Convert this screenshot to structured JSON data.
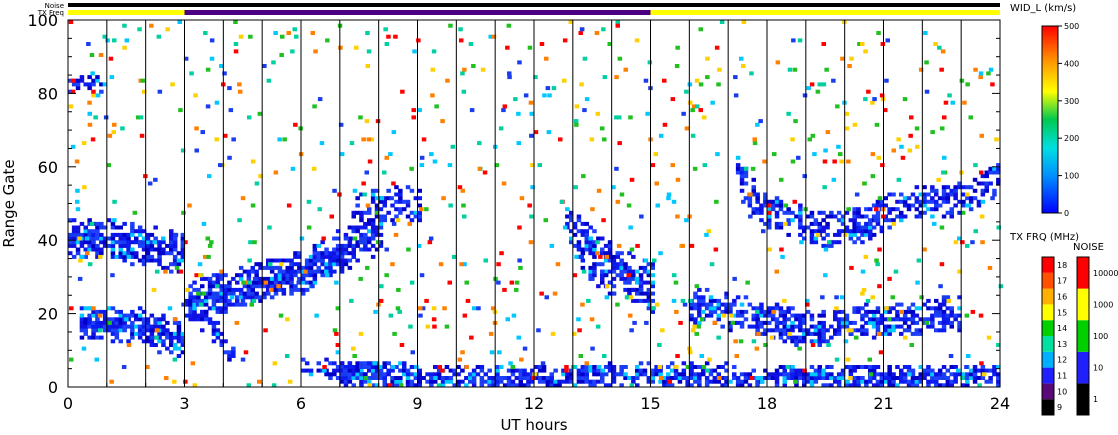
{
  "chart_data": {
    "type": "heatmap",
    "xlabel": "UT hours",
    "ylabel": "Range Gate",
    "xlim": [
      0,
      24
    ],
    "ylim": [
      0,
      100
    ],
    "x_ticks": [
      "0",
      "3",
      "6",
      "9",
      "12",
      "15",
      "18",
      "21",
      "24"
    ],
    "y_ticks": [
      "0",
      "20",
      "40",
      "60",
      "80",
      "100"
    ],
    "status_bars": {
      "noise_label": "Noise",
      "txfreq_label": "TX Freq",
      "txfreq_segments": [
        {
          "start": 0,
          "end": 3,
          "color": "#ffff00"
        },
        {
          "start": 3,
          "end": 15,
          "color": "#4b0082"
        },
        {
          "start": 15,
          "end": 24,
          "color": "#ffff00"
        }
      ]
    },
    "width_colorbar": {
      "title": "WID_L (km/s)",
      "ticks": [
        "0",
        "100",
        "200",
        "300",
        "400",
        "500"
      ],
      "min": 0,
      "max": 500
    },
    "txfreq_colorbar": {
      "title": "TX FRQ (MHz)",
      "ticks": [
        "9",
        "10",
        "11",
        "12",
        "13",
        "14",
        "15",
        "16",
        "17",
        "18"
      ],
      "colors": [
        "#000000",
        "#5a0a78",
        "#2020ff",
        "#00b0ff",
        "#00e0a0",
        "#00d000",
        "#ffff00",
        "#ffb000",
        "#ff5000",
        "#ff0000"
      ]
    },
    "noise_colorbar": {
      "title": "NOISE",
      "ticks": [
        "1",
        "10",
        "100",
        "1000",
        "10000"
      ],
      "colors": [
        "#000000",
        "#2020ff",
        "#00d000",
        "#ffff00",
        "#ff0000"
      ]
    },
    "echo_bands": [
      {
        "t": [
          0,
          1,
          2,
          3
        ],
        "g": [
          40,
          40,
          38,
          36
        ],
        "w": 5,
        "d": 0.9
      },
      {
        "t": [
          0.3,
          1,
          2,
          3
        ],
        "g": [
          17,
          17,
          16,
          12
        ],
        "w": 4,
        "d": 0.9
      },
      {
        "t": [
          3,
          4,
          5,
          6,
          7,
          8
        ],
        "g": [
          22,
          25,
          28,
          31,
          37,
          42
        ],
        "w": 5,
        "d": 0.9
      },
      {
        "t": [
          3.3,
          3.8,
          4.2
        ],
        "g": [
          20,
          14,
          8
        ],
        "w": 3,
        "d": 0.6
      },
      {
        "t": [
          7.3,
          8,
          8.5,
          9
        ],
        "g": [
          47,
          49,
          50,
          48
        ],
        "w": 4,
        "d": 0.6
      },
      {
        "t": [
          12.8,
          13.5,
          14.2,
          15
        ],
        "g": [
          45,
          37,
          32,
          28
        ],
        "w": 4,
        "d": 0.8
      },
      {
        "t": [
          13,
          14,
          15
        ],
        "g": [
          33,
          27,
          22
        ],
        "w": 2,
        "d": 0.5
      },
      {
        "t": [
          17.2,
          17.8,
          18.5,
          19.5,
          20.5,
          21.5,
          22.5,
          23.5,
          24
        ],
        "g": [
          58,
          48,
          45,
          42,
          44,
          50,
          50,
          53,
          57
        ],
        "w": 4,
        "d": 0.7
      },
      {
        "t": [
          16,
          17,
          18,
          19,
          20,
          21,
          22,
          23
        ],
        "g": [
          22,
          20,
          18,
          15,
          17,
          18,
          18,
          20
        ],
        "w": 4,
        "d": 0.75
      },
      {
        "t": [
          6,
          7,
          8
        ],
        "g": [
          5,
          4,
          4
        ],
        "w": 2,
        "d": 0.7
      },
      {
        "t": [
          7,
          9,
          11,
          13,
          15,
          17,
          19,
          21,
          23,
          24
        ],
        "g": [
          3,
          2,
          2,
          2,
          3,
          2,
          2,
          2,
          2,
          2
        ],
        "w": 3,
        "d": 0.8
      },
      {
        "t": [
          0,
          0.8
        ],
        "g": [
          82,
          82
        ],
        "w": 2,
        "d": 0.6
      }
    ]
  }
}
